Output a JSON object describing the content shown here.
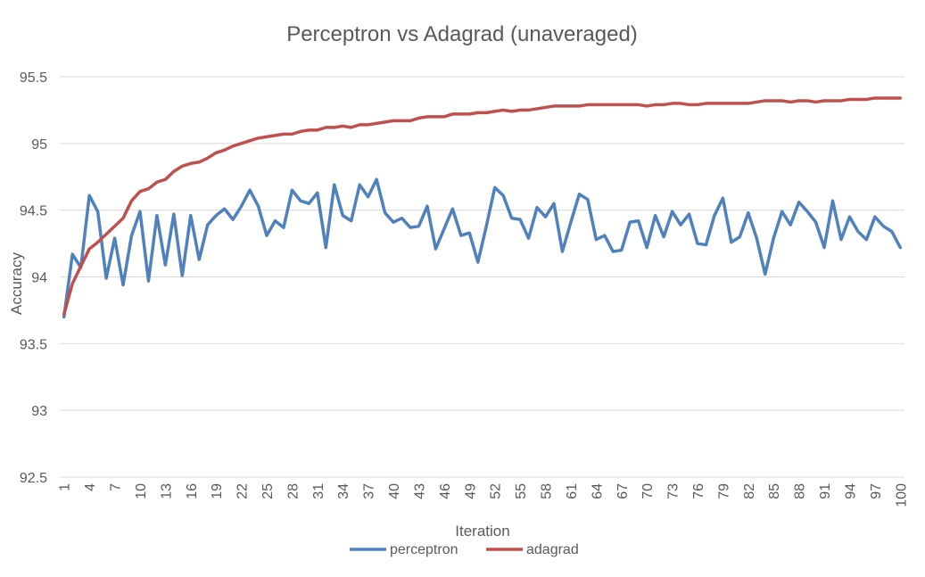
{
  "chart_data": {
    "type": "line",
    "title": "Perceptron vs Adagrad (unaveraged)",
    "xlabel": "Iteration",
    "ylabel": "Accuracy",
    "ylim": [
      92.5,
      95.5
    ],
    "y_ticks": [
      "92.5",
      "93",
      "93.5",
      "94",
      "94.5",
      "95",
      "95.5"
    ],
    "x_tick_labels": [
      "1",
      "4",
      "7",
      "10",
      "13",
      "16",
      "19",
      "22",
      "25",
      "28",
      "31",
      "34",
      "37",
      "40",
      "43",
      "46",
      "49",
      "52",
      "55",
      "58",
      "61",
      "64",
      "67",
      "70",
      "73",
      "76",
      "79",
      "82",
      "85",
      "88",
      "91",
      "94",
      "97",
      "100"
    ],
    "x_range": [
      1,
      100
    ],
    "grid": "horizontal",
    "legend_position": "bottom",
    "series": [
      {
        "name": "perceptron",
        "color": "#4f81bd",
        "values": [
          93.7,
          94.17,
          94.07,
          94.61,
          94.49,
          93.99,
          94.29,
          93.94,
          94.31,
          94.49,
          93.97,
          94.46,
          94.09,
          94.47,
          94.01,
          94.46,
          94.13,
          94.39,
          94.46,
          94.51,
          94.43,
          94.53,
          94.65,
          94.53,
          94.31,
          94.42,
          94.37,
          94.65,
          94.57,
          94.55,
          94.63,
          94.22,
          94.69,
          94.46,
          94.42,
          94.69,
          94.6,
          94.73,
          94.48,
          94.41,
          94.44,
          94.37,
          94.38,
          94.53,
          94.21,
          94.36,
          94.51,
          94.31,
          94.33,
          94.11,
          94.38,
          94.67,
          94.61,
          94.44,
          94.43,
          94.29,
          94.52,
          94.45,
          94.55,
          94.19,
          94.41,
          94.62,
          94.58,
          94.28,
          94.31,
          94.19,
          94.2,
          94.41,
          94.42,
          94.22,
          94.46,
          94.3,
          94.49,
          94.39,
          94.47,
          94.25,
          94.24,
          94.46,
          94.59,
          94.26,
          94.3,
          94.48,
          94.29,
          94.02,
          94.29,
          94.49,
          94.39,
          94.56,
          94.49,
          94.41,
          94.22,
          94.57,
          94.28,
          94.45,
          94.34,
          94.28,
          94.45,
          94.38,
          94.34,
          94.22
        ]
      },
      {
        "name": "adagrad",
        "color": "#c0504d",
        "values": [
          93.72,
          93.95,
          94.08,
          94.21,
          94.26,
          94.32,
          94.38,
          94.44,
          94.57,
          94.64,
          94.66,
          94.71,
          94.73,
          94.79,
          94.83,
          94.85,
          94.86,
          94.89,
          94.93,
          94.95,
          94.98,
          95.0,
          95.02,
          95.04,
          95.05,
          95.06,
          95.07,
          95.07,
          95.09,
          95.1,
          95.1,
          95.12,
          95.12,
          95.13,
          95.12,
          95.14,
          95.14,
          95.15,
          95.16,
          95.17,
          95.17,
          95.17,
          95.19,
          95.2,
          95.2,
          95.2,
          95.22,
          95.22,
          95.22,
          95.23,
          95.23,
          95.24,
          95.25,
          95.24,
          95.25,
          95.25,
          95.26,
          95.27,
          95.28,
          95.28,
          95.28,
          95.28,
          95.29,
          95.29,
          95.29,
          95.29,
          95.29,
          95.29,
          95.29,
          95.28,
          95.29,
          95.29,
          95.3,
          95.3,
          95.29,
          95.29,
          95.3,
          95.3,
          95.3,
          95.3,
          95.3,
          95.3,
          95.31,
          95.32,
          95.32,
          95.32,
          95.31,
          95.32,
          95.32,
          95.31,
          95.32,
          95.32,
          95.32,
          95.33,
          95.33,
          95.33,
          95.34,
          95.34,
          95.34,
          95.34
        ]
      }
    ]
  }
}
